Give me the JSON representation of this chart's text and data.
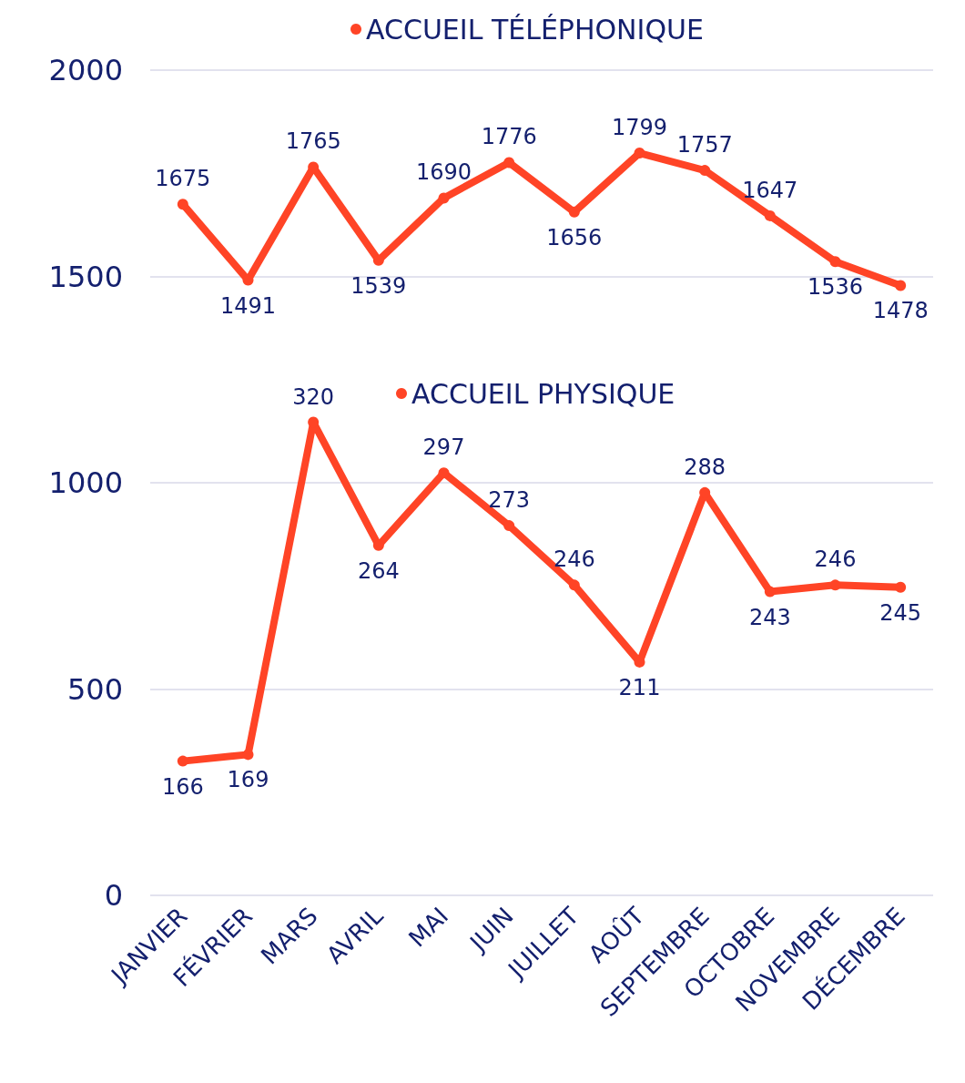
{
  "chart_data": {
    "type": "line",
    "categories": [
      "JANVIER",
      "FÉVRIER",
      "MARS",
      "AVRIL",
      "MAI",
      "JUIN",
      "JUILLET",
      "AOÛT",
      "SEPTEMBRE",
      "OCTOBRE",
      "NOVEMBRE",
      "DÉCEMBRE"
    ],
    "series": [
      {
        "name": "ACCUEIL TÉLÉPHONIQUE",
        "color": "#ff4426",
        "values": [
          1675,
          1491,
          1765,
          1539,
          1690,
          1776,
          1656,
          1799,
          1757,
          1647,
          1536,
          1478
        ]
      },
      {
        "name": "ACCUEIL PHYSIQUE",
        "color": "#ff4426",
        "axis": "y2",
        "values": [
          166,
          169,
          320,
          264,
          297,
          273,
          246,
          211,
          288,
          243,
          246,
          245
        ]
      }
    ],
    "ylim": [
      0,
      2000
    ],
    "yticks": [
      0,
      500,
      1000,
      1500,
      2000
    ],
    "y2lim": [
      105,
      480
    ],
    "grid": "y",
    "legend": "top",
    "marker": "circle",
    "line_style": "solid",
    "data_labels": true
  }
}
